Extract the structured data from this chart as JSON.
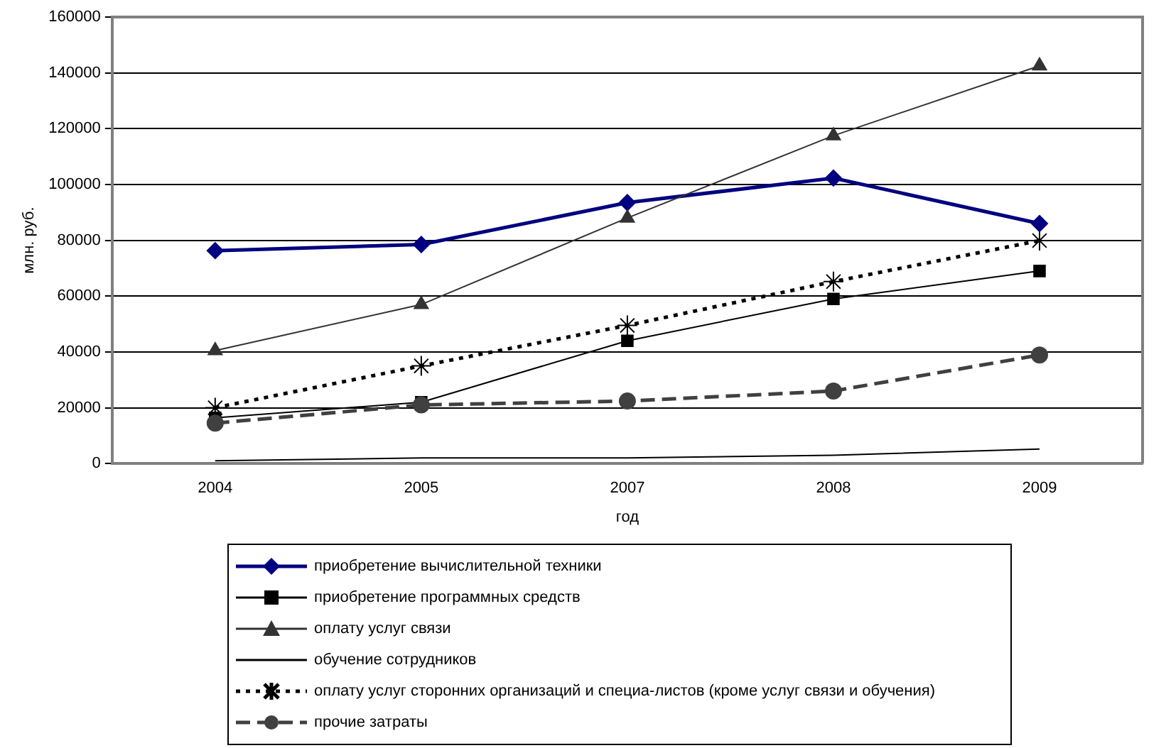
{
  "chart_data": {
    "type": "line",
    "xlabel": "год",
    "ylabel": "млн. руб.",
    "categories": [
      "2004",
      "2005",
      "2007",
      "2008",
      "2009"
    ],
    "ylim": [
      0,
      160000
    ],
    "yticks": [
      0,
      20000,
      40000,
      60000,
      80000,
      100000,
      120000,
      140000,
      160000
    ],
    "grid": "y",
    "legend": "bottom",
    "series": [
      {
        "name": "приобретение вычислительной техники",
        "color": "#000080",
        "values": [
          76300,
          78500,
          93500,
          102300,
          86000
        ],
        "marker": "diamond",
        "line_style": "solid"
      },
      {
        "name": "приобретение программных средств",
        "color": "#000000",
        "values": [
          16400,
          22000,
          44000,
          59000,
          69000
        ],
        "marker": "square",
        "line_style": "solid"
      },
      {
        "name": "оплату услуг связи",
        "color": "#333333",
        "values": [
          40500,
          57000,
          88000,
          117500,
          142500
        ],
        "marker": "triangle",
        "line_style": "solid"
      },
      {
        "name": "обучение сотрудников",
        "color": "#000000",
        "values": [
          1000,
          2000,
          2000,
          3000,
          5200
        ],
        "marker": "none",
        "line_style": "solid"
      },
      {
        "name": "оплату услуг сторонних организаций и специа-листов (кроме услуг связи и обучения)",
        "color": "#000000",
        "values": [
          20000,
          35000,
          49500,
          65200,
          79900
        ],
        "marker": "cross",
        "line_style": "dotted"
      },
      {
        "name": "прочие затраты",
        "color": "#404040",
        "values": [
          14500,
          21000,
          22400,
          26000,
          38900
        ],
        "marker": "circle",
        "line_style": "dashed"
      }
    ]
  }
}
